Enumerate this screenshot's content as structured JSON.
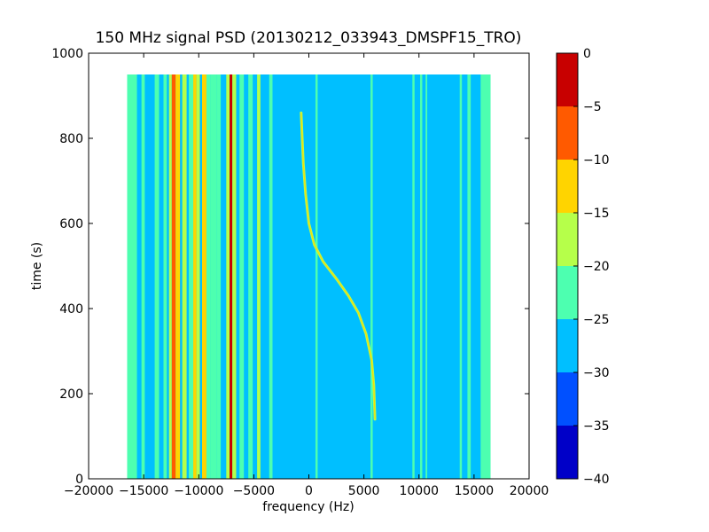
{
  "chart_data": {
    "type": "heatmap",
    "title": "150 MHz signal PSD (20130212_033943_DMSPF15_TRO)",
    "xlabel": "frequency (Hz)",
    "ylabel": "time (s)",
    "xlim": [
      -20000,
      20000
    ],
    "ylim": [
      0,
      1000
    ],
    "x_ticks": [
      -20000,
      -15000,
      -10000,
      -5000,
      0,
      5000,
      10000,
      15000,
      20000
    ],
    "y_ticks": [
      0,
      200,
      400,
      600,
      800,
      1000
    ],
    "data_extent": {
      "x": [
        -16500,
        16500
      ],
      "y": [
        0,
        950
      ]
    },
    "background_level": -27,
    "colorbar": {
      "range": [
        -40,
        0
      ],
      "ticks": [
        0,
        -5,
        -10,
        -15,
        -20,
        -25,
        -30,
        -35,
        -40
      ],
      "bins": [
        {
          "from": -40,
          "to": -35,
          "color": "#0000c8"
        },
        {
          "from": -35,
          "to": -30,
          "color": "#0050ff"
        },
        {
          "from": -30,
          "to": -25,
          "color": "#00bfff"
        },
        {
          "from": -25,
          "to": -20,
          "color": "#4dffb0"
        },
        {
          "from": -20,
          "to": -15,
          "color": "#b6ff4a"
        },
        {
          "from": -15,
          "to": -10,
          "color": "#ffd400"
        },
        {
          "from": -10,
          "to": -5,
          "color": "#ff5a00"
        },
        {
          "from": -5,
          "to": 0,
          "color": "#c80000"
        }
      ]
    },
    "bands": [
      {
        "f_start": -16500,
        "f_end": -15600,
        "level": -22
      },
      {
        "f_start": -15600,
        "f_end": -14800,
        "level": -27
      },
      {
        "f_start": -15200,
        "f_end": -14900,
        "level": -22
      },
      {
        "f_start": -14000,
        "f_end": -13600,
        "level": -22
      },
      {
        "f_start": -13200,
        "f_end": -12900,
        "level": -22
      },
      {
        "f_start": -12700,
        "f_end": -12450,
        "level": -17
      },
      {
        "f_start": -12450,
        "f_end": -12100,
        "level": -7
      },
      {
        "f_start": -12100,
        "f_end": -11700,
        "level": -13
      },
      {
        "f_start": -11500,
        "f_end": -11100,
        "level": -17
      },
      {
        "f_start": -10900,
        "f_end": -10500,
        "level": -22
      },
      {
        "f_start": -10500,
        "f_end": -10200,
        "level": -12
      },
      {
        "f_start": -10200,
        "f_end": -9900,
        "level": -17
      },
      {
        "f_start": -9700,
        "f_end": -9300,
        "level": -12
      },
      {
        "f_start": -9300,
        "f_end": -8900,
        "level": -22
      },
      {
        "f_start": -8900,
        "f_end": -8400,
        "level": -22
      },
      {
        "f_start": -8400,
        "f_end": -8000,
        "level": -22
      },
      {
        "f_start": -7500,
        "f_end": -7200,
        "level": -17
      },
      {
        "f_start": -7200,
        "f_end": -6950,
        "level": -3
      },
      {
        "f_start": -6950,
        "f_end": -6600,
        "level": -17
      },
      {
        "f_start": -6300,
        "f_end": -5900,
        "level": -22
      },
      {
        "f_start": -5500,
        "f_end": -5100,
        "level": -22
      },
      {
        "f_start": -4700,
        "f_end": -4400,
        "level": -17
      },
      {
        "f_start": -3600,
        "f_end": -3300,
        "level": -22
      },
      {
        "f_start": 600,
        "f_end": 800,
        "level": -22
      },
      {
        "f_start": 5600,
        "f_end": 5800,
        "level": -22
      },
      {
        "f_start": 9400,
        "f_end": 9600,
        "level": -22
      },
      {
        "f_start": 10100,
        "f_end": 10300,
        "level": -22
      },
      {
        "f_start": 10600,
        "f_end": 10750,
        "level": -22
      },
      {
        "f_start": 13700,
        "f_end": 13900,
        "level": -22
      },
      {
        "f_start": 14400,
        "f_end": 14700,
        "level": -22
      },
      {
        "f_start": 15600,
        "f_end": 16500,
        "level": -22
      }
    ],
    "doppler_trace": {
      "level": -17,
      "points": [
        {
          "x": -700,
          "y": 860
        },
        {
          "x": -600,
          "y": 800
        },
        {
          "x": -500,
          "y": 740
        },
        {
          "x": -300,
          "y": 670
        },
        {
          "x": 0,
          "y": 600
        },
        {
          "x": 500,
          "y": 550
        },
        {
          "x": 1300,
          "y": 510
        },
        {
          "x": 2500,
          "y": 470
        },
        {
          "x": 3600,
          "y": 430
        },
        {
          "x": 4500,
          "y": 390
        },
        {
          "x": 5200,
          "y": 340
        },
        {
          "x": 5700,
          "y": 280
        },
        {
          "x": 5900,
          "y": 220
        },
        {
          "x": 6000,
          "y": 140
        }
      ]
    }
  }
}
